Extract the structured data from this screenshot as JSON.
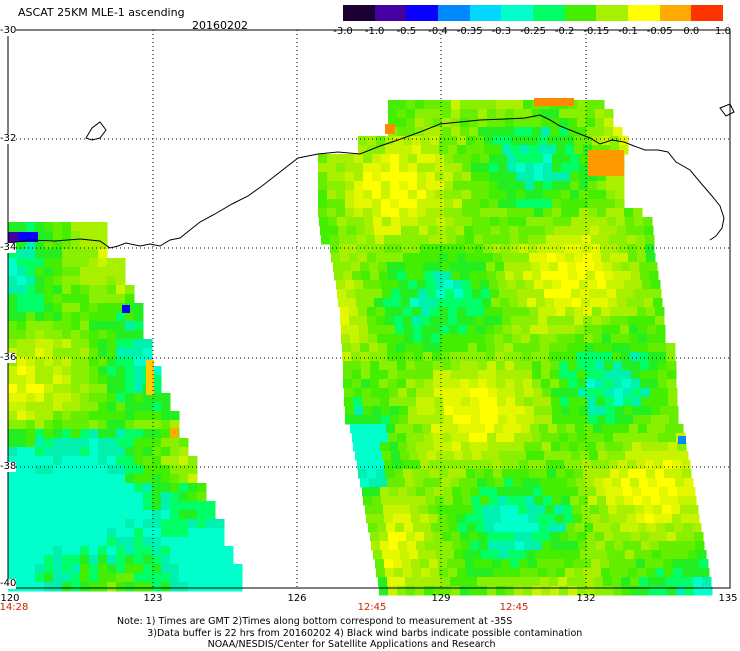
{
  "header": {
    "title": "ASCAT 25KM MLE-1 ascending",
    "date": "20160202"
  },
  "colorbar": {
    "labels": [
      "-3.0",
      "-1.0",
      "-0.5",
      "-0.4",
      "-0.35",
      "-0.3",
      "-0.25",
      "-0.2",
      "-0.15",
      "-0.1",
      "-0.05",
      "0.0",
      "1.0"
    ],
    "colors": [
      "#1a0033",
      "#4400a0",
      "#0a00ff",
      "#0088ff",
      "#00d8ff",
      "#00ffcc",
      "#00ff66",
      "#44ee00",
      "#a8f000",
      "#ffff00",
      "#ffaa00",
      "#ff3300"
    ]
  },
  "axes": {
    "lat_labels": [
      "-30",
      "-32",
      "-34",
      "-36",
      "-38",
      "-40"
    ],
    "lon_labels": [
      "120",
      "123",
      "126",
      "129",
      "132",
      "135"
    ]
  },
  "times": [
    "14:28",
    "12:45",
    "12:45"
  ],
  "notes": {
    "line1": "Note: 1) Times are GMT 2)Times along bottom correspond to measurement at -35S",
    "line2": "3)Data buffer is 22 hrs from 20160202 4) Black wind barbs indicate possible contamination",
    "line3": "NOAA/NESDIS/Center for Satellite Applications and Research"
  }
}
